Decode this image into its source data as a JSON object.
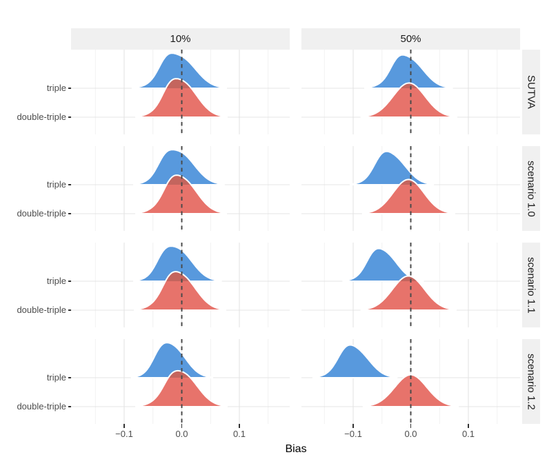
{
  "figure": {
    "kind": "faceted ridgeline density plot",
    "background": "#ffffff"
  },
  "chart_data": {
    "type": "area",
    "subtype": "ridgeline",
    "title": "",
    "xlabel": "Bias",
    "ylabel": "",
    "legend": "none",
    "grid": true,
    "x_range": [
      -0.19,
      0.19
    ],
    "x_ticks": [
      -0.1,
      0.0,
      0.1
    ],
    "x_tick_labels": [
      "−0.1",
      "0.0",
      "0.1"
    ],
    "x_minor_ticks": [
      -0.15,
      -0.05,
      0.05,
      0.15
    ],
    "zero_reference_line": 0.0,
    "col_facets": [
      "10%",
      "50%"
    ],
    "row_facets": [
      "SUTVA",
      "scenario 1.0",
      "scenario 1.1",
      "scenario 1.2"
    ],
    "series": [
      "triple",
      "double-triple"
    ],
    "colors": {
      "triple_fill": "#5899DD",
      "double_triple_fill": "#E7736B",
      "overlap_fill": "#C4655E",
      "ridge_outline": "#FFFFFF",
      "zero_line": "#4A4A4A",
      "grid_major": "#E4E4E4",
      "grid_minor": "#F0F0F0",
      "strip_bg": "#F0F0F0",
      "strip_text": "#1A1A1A",
      "axis_text": "#4D4D4D",
      "axis_title": "#000000"
    },
    "panels": [
      {
        "row": "SUTVA",
        "col": "10%",
        "ridges": [
          {
            "name": "triple",
            "components": [
              {
                "c": -0.004,
                "s": 0.028,
                "w": 1.0
              },
              {
                "c": -0.028,
                "s": 0.013,
                "w": 0.32
              }
            ],
            "rel_height": 1.21
          },
          {
            "name": "double-triple",
            "components": [
              {
                "c": -0.001,
                "s": 0.027,
                "w": 1.0
              },
              {
                "c": -0.022,
                "s": 0.012,
                "w": 0.22
              }
            ],
            "rel_height": 1.33
          }
        ]
      },
      {
        "row": "SUTVA",
        "col": "50%",
        "ridges": [
          {
            "name": "triple",
            "components": [
              {
                "c": -0.004,
                "s": 0.026,
                "w": 1.0
              },
              {
                "c": -0.024,
                "s": 0.012,
                "w": 0.28
              }
            ],
            "rel_height": 1.15
          },
          {
            "name": "double-triple",
            "components": [
              {
                "c": -0.003,
                "s": 0.028,
                "w": 1.0
              }
            ],
            "rel_height": 1.18
          }
        ]
      },
      {
        "row": "scenario 1.0",
        "col": "10%",
        "ridges": [
          {
            "name": "triple",
            "components": [
              {
                "c": -0.005,
                "s": 0.027,
                "w": 1.0
              },
              {
                "c": -0.03,
                "s": 0.013,
                "w": 0.3
              }
            ],
            "rel_height": 1.21
          },
          {
            "name": "double-triple",
            "components": [
              {
                "c": -0.001,
                "s": 0.027,
                "w": 1.0
              },
              {
                "c": -0.02,
                "s": 0.012,
                "w": 0.2
              }
            ],
            "rel_height": 1.33
          }
        ]
      },
      {
        "row": "scenario 1.0",
        "col": "50%",
        "ridges": [
          {
            "name": "triple",
            "components": [
              {
                "c": -0.033,
                "s": 0.025,
                "w": 1.0
              },
              {
                "c": -0.052,
                "s": 0.013,
                "w": 0.3
              }
            ],
            "rel_height": 1.15
          },
          {
            "name": "double-triple",
            "components": [
              {
                "c": -0.004,
                "s": 0.027,
                "w": 1.0
              }
            ],
            "rel_height": 1.18
          }
        ]
      },
      {
        "row": "scenario 1.1",
        "col": "10%",
        "ridges": [
          {
            "name": "triple",
            "components": [
              {
                "c": -0.008,
                "s": 0.026,
                "w": 1.0
              },
              {
                "c": -0.032,
                "s": 0.013,
                "w": 0.3
              }
            ],
            "rel_height": 1.21
          },
          {
            "name": "double-triple",
            "components": [
              {
                "c": -0.003,
                "s": 0.027,
                "w": 1.0
              },
              {
                "c": -0.022,
                "s": 0.012,
                "w": 0.2
              }
            ],
            "rel_height": 1.33
          }
        ]
      },
      {
        "row": "scenario 1.1",
        "col": "50%",
        "ridges": [
          {
            "name": "triple",
            "components": [
              {
                "c": -0.048,
                "s": 0.024,
                "w": 1.0
              },
              {
                "c": -0.066,
                "s": 0.012,
                "w": 0.25
              }
            ],
            "rel_height": 1.13
          },
          {
            "name": "double-triple",
            "components": [
              {
                "c": -0.004,
                "s": 0.028,
                "w": 1.0
              }
            ],
            "rel_height": 1.18
          }
        ]
      },
      {
        "row": "scenario 1.2",
        "col": "10%",
        "ridges": [
          {
            "name": "triple",
            "components": [
              {
                "c": -0.017,
                "s": 0.024,
                "w": 1.0
              },
              {
                "c": -0.038,
                "s": 0.013,
                "w": 0.3
              }
            ],
            "rel_height": 1.21
          },
          {
            "name": "double-triple",
            "components": [
              {
                "c": 0.0,
                "s": 0.027,
                "w": 1.0
              },
              {
                "c": -0.02,
                "s": 0.012,
                "w": 0.18
              }
            ],
            "rel_height": 1.24
          }
        ]
      },
      {
        "row": "scenario 1.2",
        "col": "50%",
        "ridges": [
          {
            "name": "triple",
            "components": [
              {
                "c": -0.097,
                "s": 0.025,
                "w": 1.0
              },
              {
                "c": -0.115,
                "s": 0.013,
                "w": 0.28
              }
            ],
            "rel_height": 1.13
          },
          {
            "name": "double-triple",
            "components": [
              {
                "c": 0.0,
                "s": 0.028,
                "w": 1.0
              }
            ],
            "rel_height": 1.1
          }
        ]
      }
    ]
  }
}
